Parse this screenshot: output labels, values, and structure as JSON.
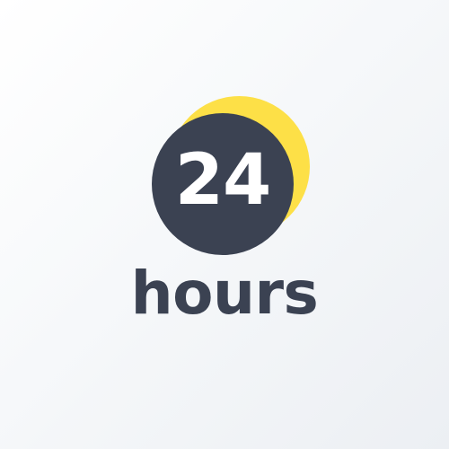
{
  "logo": {
    "number": "24",
    "caption": "hours",
    "colors": {
      "accent": "#fde047",
      "badge": "#3b4252",
      "number": "#ffffff",
      "caption": "#3b4252"
    }
  }
}
